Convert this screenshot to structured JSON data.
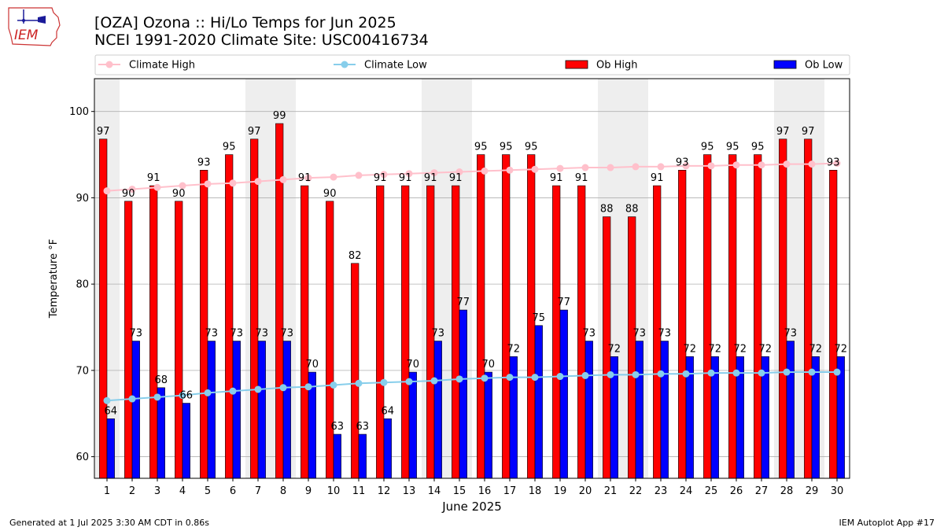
{
  "header": {
    "title_line1": "[OZA] Ozona :: Hi/Lo Temps for Jun 2025",
    "title_line2": "NCEI 1991-2020 Climate Site: USC00416734",
    "logo_text": "IEM"
  },
  "footer": {
    "left": "Generated at 1 Jul 2025 3:30 AM CDT in 0.86s",
    "right": "IEM Autoplot App #17"
  },
  "colors": {
    "ob_high": "#ff0000",
    "ob_low": "#0000ff",
    "climate_high": "#ffc0cb",
    "climate_low": "#87ceeb",
    "weekend_shade": "#eeeeee",
    "grid": "#b0b0b0"
  },
  "chart_data": {
    "type": "bar",
    "xlabel": "June 2025",
    "ylabel": "Temperature °F",
    "ylim": [
      57.5,
      103.8
    ],
    "yticks": [
      60,
      70,
      80,
      90,
      100
    ],
    "grid": "horizontal",
    "legend_position": "top",
    "categories": [
      "1",
      "2",
      "3",
      "4",
      "5",
      "6",
      "7",
      "8",
      "9",
      "10",
      "11",
      "12",
      "13",
      "14",
      "15",
      "16",
      "17",
      "18",
      "19",
      "20",
      "21",
      "22",
      "23",
      "24",
      "25",
      "26",
      "27",
      "28",
      "29",
      "30"
    ],
    "weekend_days": [
      1,
      7,
      8,
      14,
      15,
      21,
      22,
      28,
      29
    ],
    "series": [
      {
        "name": "Ob High",
        "kind": "bar",
        "values": [
          97,
          90,
          91,
          90,
          93,
          95,
          97,
          99,
          91,
          90,
          82,
          91,
          91,
          91,
          91,
          95,
          95,
          95,
          91,
          91,
          88,
          88,
          91,
          93,
          95,
          95,
          95,
          97,
          97,
          93
        ],
        "plotted": [
          96.8,
          89.6,
          91.4,
          89.6,
          93.2,
          95,
          96.8,
          98.6,
          91.4,
          89.6,
          82.4,
          91.4,
          91.4,
          91.4,
          91.4,
          95,
          95,
          95,
          91.4,
          91.4,
          87.8,
          87.8,
          91.4,
          93.2,
          95,
          95,
          95,
          96.8,
          96.8,
          93.2
        ]
      },
      {
        "name": "Ob Low",
        "kind": "bar",
        "values": [
          64,
          73,
          68,
          66,
          73,
          73,
          73,
          73,
          70,
          63,
          63,
          64,
          70,
          73,
          77,
          70,
          72,
          75,
          77,
          73,
          72,
          73,
          73,
          72,
          72,
          72,
          72,
          73,
          72,
          72
        ],
        "plotted": [
          64.4,
          73.4,
          68,
          66.2,
          73.4,
          73.4,
          73.4,
          73.4,
          69.8,
          62.6,
          62.6,
          64.4,
          69.8,
          73.4,
          77,
          69.8,
          71.6,
          75.2,
          77,
          73.4,
          71.6,
          73.4,
          73.4,
          71.6,
          71.6,
          71.6,
          71.6,
          73.4,
          71.6,
          71.6
        ]
      },
      {
        "name": "Climate High",
        "kind": "line",
        "values": [
          90.8,
          91.0,
          91.2,
          91.4,
          91.6,
          91.7,
          91.9,
          92.1,
          92.3,
          92.4,
          92.6,
          92.7,
          92.8,
          92.9,
          93.0,
          93.1,
          93.2,
          93.3,
          93.4,
          93.5,
          93.5,
          93.6,
          93.6,
          93.7,
          93.7,
          93.8,
          93.8,
          93.9,
          93.9,
          94.0
        ]
      },
      {
        "name": "Climate Low",
        "kind": "line",
        "values": [
          66.5,
          66.7,
          66.9,
          67.1,
          67.4,
          67.6,
          67.8,
          68.0,
          68.1,
          68.3,
          68.5,
          68.6,
          68.7,
          68.8,
          69.0,
          69.1,
          69.2,
          69.2,
          69.3,
          69.4,
          69.5,
          69.5,
          69.6,
          69.6,
          69.7,
          69.7,
          69.7,
          69.8,
          69.8,
          69.8
        ]
      }
    ]
  }
}
